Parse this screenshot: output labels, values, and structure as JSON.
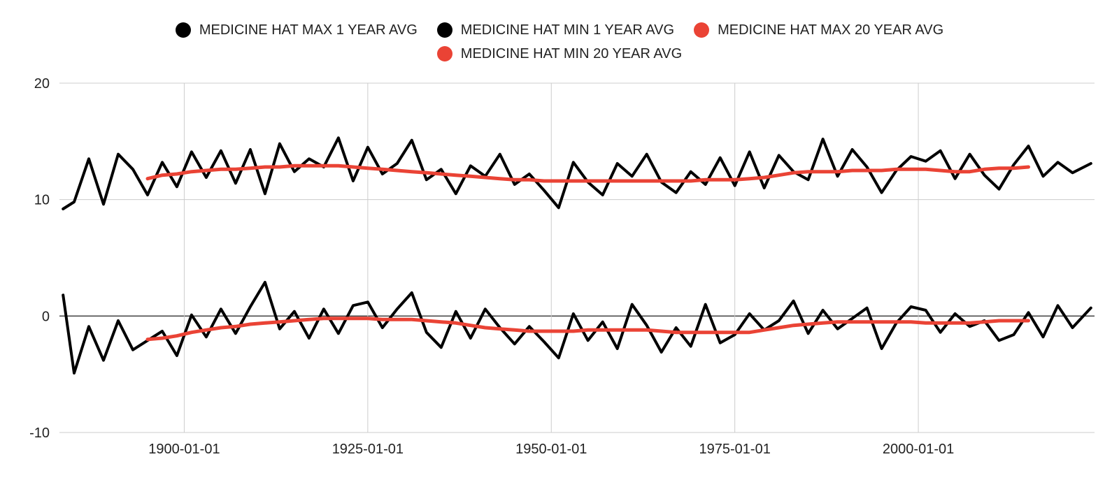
{
  "chart_data": {
    "type": "line",
    "title": "",
    "xlabel": "",
    "ylabel": "",
    "xlim": [
      "1883-01-01",
      "2024-01-01"
    ],
    "ylim": [
      -10,
      20
    ],
    "y_ticks": [
      -10,
      0,
      10,
      20
    ],
    "y_tick_labels": [
      "-10",
      "0",
      "10",
      "20"
    ],
    "x_ticks": [
      "1900-01-01",
      "1925-01-01",
      "1950-01-01",
      "1975-01-01",
      "2000-01-01"
    ],
    "x_tick_labels": [
      "1900-01-01",
      "1925-01-01",
      "1950-01-01",
      "1975-01-01",
      "2000-01-01"
    ],
    "grid": true,
    "legend_position": "top",
    "x": [
      1883.5,
      1885,
      1887,
      1889,
      1891,
      1893,
      1895,
      1897,
      1899,
      1901,
      1903,
      1905,
      1907,
      1909,
      1911,
      1913,
      1915,
      1917,
      1919,
      1921,
      1923,
      1925,
      1927,
      1929,
      1931,
      1933,
      1935,
      1937,
      1939,
      1941,
      1943,
      1945,
      1947,
      1949,
      1951,
      1953,
      1955,
      1957,
      1959,
      1961,
      1963,
      1965,
      1967,
      1969,
      1971,
      1973,
      1975,
      1977,
      1979,
      1981,
      1983,
      1985,
      1987,
      1989,
      1991,
      1993,
      1995,
      1997,
      1999,
      2001,
      2003,
      2005,
      2007,
      2009,
      2011,
      2013,
      2015,
      2017,
      2019,
      2021,
      2023.5
    ],
    "series": [
      {
        "name": "MEDICINE HAT MAX 1 YEAR AVG",
        "color": "#000000",
        "values": [
          9.2,
          9.8,
          13.5,
          9.6,
          13.9,
          12.6,
          10.4,
          13.2,
          11.1,
          14.1,
          11.9,
          14.2,
          11.4,
          14.3,
          10.5,
          14.8,
          12.4,
          13.5,
          12.8,
          15.3,
          11.6,
          14.5,
          12.2,
          13.1,
          15.1,
          11.7,
          12.6,
          10.5,
          12.9,
          12.0,
          13.9,
          11.3,
          12.2,
          10.8,
          9.3,
          13.2,
          11.5,
          10.4,
          13.1,
          12.0,
          13.9,
          11.5,
          10.6,
          12.4,
          11.3,
          13.6,
          11.2,
          14.1,
          11.0,
          13.8,
          12.4,
          11.7,
          15.2,
          12.0,
          14.3,
          12.8,
          10.6,
          12.5,
          13.7,
          13.3,
          14.2,
          11.8,
          13.9,
          12.1,
          10.9,
          13.0,
          14.6,
          12.0,
          13.2,
          12.3,
          13.1
        ]
      },
      {
        "name": "MEDICINE HAT MIN 1 YEAR AVG",
        "color": "#000000",
        "values": [
          1.8,
          -4.9,
          -0.9,
          -3.8,
          -0.4,
          -2.9,
          -2.1,
          -1.3,
          -3.4,
          0.1,
          -1.8,
          0.6,
          -1.5,
          0.8,
          2.9,
          -1.1,
          0.4,
          -1.9,
          0.6,
          -1.5,
          0.9,
          1.2,
          -1.0,
          0.6,
          2.0,
          -1.4,
          -2.7,
          0.4,
          -1.9,
          0.6,
          -1.0,
          -2.4,
          -0.9,
          -2.2,
          -3.6,
          0.2,
          -2.1,
          -0.5,
          -2.8,
          1.0,
          -0.8,
          -3.1,
          -1.0,
          -2.6,
          1.0,
          -2.3,
          -1.6,
          0.2,
          -1.2,
          -0.4,
          1.3,
          -1.5,
          0.5,
          -1.1,
          -0.2,
          0.7,
          -2.8,
          -0.6,
          0.8,
          0.5,
          -1.4,
          0.2,
          -0.9,
          -0.4,
          -2.1,
          -1.6,
          0.3,
          -1.8,
          0.9,
          -1.0,
          0.7
        ]
      },
      {
        "name": "MEDICINE HAT MAX 20 YEAR AVG",
        "color": "#EA4335",
        "values": [
          null,
          null,
          null,
          null,
          null,
          null,
          11.8,
          12.1,
          12.2,
          12.4,
          12.5,
          12.6,
          12.6,
          12.7,
          12.8,
          12.8,
          12.9,
          12.9,
          12.9,
          12.9,
          12.8,
          12.7,
          12.6,
          12.5,
          12.4,
          12.3,
          12.2,
          12.1,
          12.0,
          11.9,
          11.8,
          11.7,
          11.7,
          11.6,
          11.6,
          11.6,
          11.6,
          11.6,
          11.6,
          11.6,
          11.6,
          11.6,
          11.6,
          11.6,
          11.7,
          11.7,
          11.7,
          11.8,
          11.9,
          12.1,
          12.3,
          12.4,
          12.4,
          12.4,
          12.5,
          12.5,
          12.5,
          12.6,
          12.6,
          12.6,
          12.5,
          12.4,
          12.4,
          12.6,
          12.7,
          12.7,
          12.8,
          null,
          null,
          null,
          null
        ]
      },
      {
        "name": "MEDICINE HAT MIN 20 YEAR AVG",
        "color": "#EA4335",
        "values": [
          null,
          null,
          null,
          null,
          null,
          null,
          -2.0,
          -1.9,
          -1.7,
          -1.4,
          -1.2,
          -1.0,
          -0.9,
          -0.7,
          -0.6,
          -0.5,
          -0.4,
          -0.3,
          -0.2,
          -0.2,
          -0.2,
          -0.2,
          -0.3,
          -0.3,
          -0.3,
          -0.4,
          -0.5,
          -0.6,
          -0.8,
          -1.0,
          -1.1,
          -1.2,
          -1.3,
          -1.3,
          -1.3,
          -1.3,
          -1.2,
          -1.2,
          -1.2,
          -1.2,
          -1.2,
          -1.3,
          -1.4,
          -1.4,
          -1.4,
          -1.4,
          -1.4,
          -1.4,
          -1.2,
          -1.0,
          -0.8,
          -0.7,
          -0.6,
          -0.5,
          -0.5,
          -0.5,
          -0.5,
          -0.5,
          -0.5,
          -0.6,
          -0.6,
          -0.6,
          -0.6,
          -0.5,
          -0.4,
          -0.4,
          -0.4,
          null,
          null,
          null,
          null
        ]
      }
    ]
  }
}
